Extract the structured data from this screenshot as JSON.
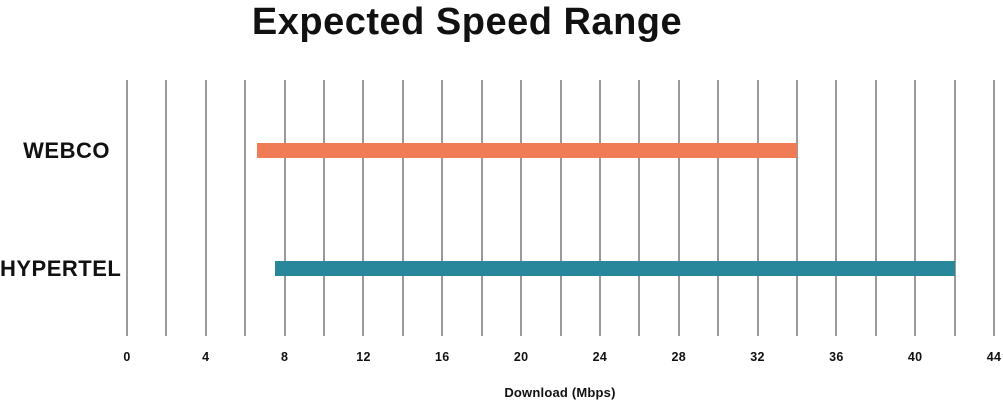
{
  "chart_data": {
    "type": "bar",
    "orientation": "horizontal",
    "title": "Expected Speed Range",
    "xlabel": "Download (Mbps)",
    "categories": [
      "WEBCO",
      "HYPERTEL"
    ],
    "series": [
      {
        "name": "WEBCO",
        "range": [
          6.6,
          34
        ],
        "color": "#F07C55"
      },
      {
        "name": "HYPERTEL",
        "range": [
          7.5,
          42
        ],
        "color": "#28879B"
      }
    ],
    "xlim": [
      0,
      44
    ],
    "x_ticks": [
      0,
      4,
      8,
      12,
      16,
      20,
      24,
      28,
      32,
      36,
      40,
      44
    ],
    "grid_step": 2,
    "grid": true,
    "legend": false,
    "colors": {
      "grid": "#9C9A94",
      "text": "#111111",
      "background": "#FFFFFF"
    }
  }
}
